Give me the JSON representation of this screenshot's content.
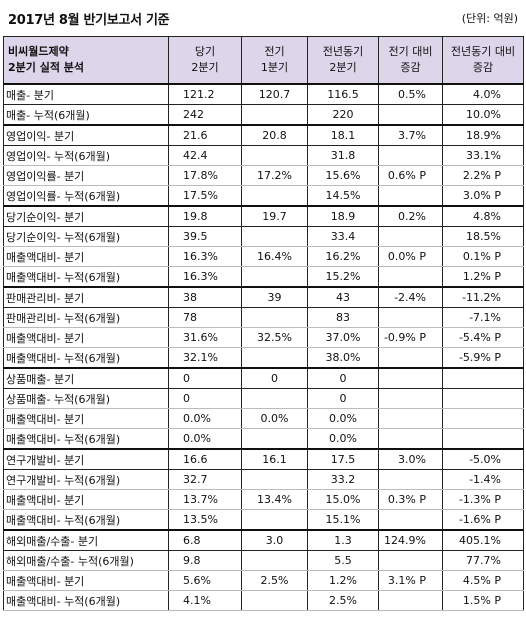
{
  "title": "2017년 8월 반기보고서 기준",
  "unit": "(단위: 억원)",
  "header": {
    "company": "비씨월드제약",
    "subtitle": "2분기 실적 분석",
    "col1": [
      "당기",
      "2분기"
    ],
    "col2": [
      "전기",
      "1분기"
    ],
    "col3": [
      "전년동기",
      "2분기"
    ],
    "col4": [
      "전기 대비",
      "증감"
    ],
    "col5": [
      "전년동기 대비",
      "증감"
    ]
  },
  "groups": [
    {
      "rows": [
        [
          "매출- 분기",
          "121.2",
          "120.7",
          "116.5",
          "0.5%",
          "4.0%"
        ],
        [
          "매출- 누적(6개월)",
          "242",
          "",
          "220",
          "",
          "10.0%"
        ]
      ]
    },
    {
      "rows": [
        [
          "영업이익- 분기",
          "21.6",
          "20.8",
          "18.1",
          "3.7%",
          "18.9%"
        ],
        [
          "영업이익- 누적(6개월)",
          "42.4",
          "",
          "31.8",
          "",
          "33.1%"
        ],
        [
          "영업이익률- 분기",
          "17.8%",
          "17.2%",
          "15.6%",
          "0.6% P",
          "2.2% P"
        ],
        [
          "영업이익률- 누적(6개월)",
          "17.5%",
          "",
          "14.5%",
          "",
          "3.0% P"
        ]
      ]
    },
    {
      "rows": [
        [
          "당기순이익- 분기",
          "19.8",
          "19.7",
          "18.9",
          "0.2%",
          "4.8%"
        ],
        [
          "당기순이익- 누적(6개월)",
          "39.5",
          "",
          "33.4",
          "",
          "18.5%"
        ],
        [
          "매출액대비- 분기",
          "16.3%",
          "16.4%",
          "16.2%",
          "0.0% P",
          "0.1% P"
        ],
        [
          "매출액대비- 누적(6개월)",
          "16.3%",
          "",
          "15.2%",
          "",
          "1.2% P"
        ]
      ]
    },
    {
      "rows": [
        [
          "판매관리비- 분기",
          "38",
          "39",
          "43",
          "-2.4%",
          "-11.2%"
        ],
        [
          "판매관리비- 누적(6개월)",
          "78",
          "",
          "83",
          "",
          "-7.1%"
        ],
        [
          "매출액대비- 분기",
          "31.6%",
          "32.5%",
          "37.0%",
          "-0.9% P",
          "-5.4% P"
        ],
        [
          "매출액대비- 누적(6개월)",
          "32.1%",
          "",
          "38.0%",
          "",
          "-5.9% P"
        ]
      ]
    },
    {
      "rows": [
        [
          "상품매출- 분기",
          "0",
          "0",
          "0",
          "",
          ""
        ],
        [
          "상품매출- 누적(6개월)",
          "0",
          "",
          "0",
          "",
          ""
        ],
        [
          "매출액대비- 분기",
          "0.0%",
          "0.0%",
          "0.0%",
          "",
          ""
        ],
        [
          "매출액대비- 누적(6개월)",
          "0.0%",
          "",
          "0.0%",
          "",
          ""
        ]
      ]
    },
    {
      "rows": [
        [
          "연구개발비- 분기",
          "16.6",
          "16.1",
          "17.5",
          "3.0%",
          "-5.0%"
        ],
        [
          "연구개발비- 누적(6개월)",
          "32.7",
          "",
          "33.2",
          "",
          "-1.4%"
        ],
        [
          "매출액대비- 분기",
          "13.7%",
          "13.4%",
          "15.0%",
          "0.3% P",
          "-1.3% P"
        ],
        [
          "매출액대비- 누적(6개월)",
          "13.5%",
          "",
          "15.1%",
          "",
          "-1.6% P"
        ]
      ]
    },
    {
      "rows": [
        [
          "해외매출/수출- 분기",
          "6.8",
          "3.0",
          "1.3",
          "124.9%",
          "405.1%"
        ],
        [
          "해외매출/수출- 누적(6개월)",
          "9.8",
          "",
          "5.5",
          "",
          "77.7%"
        ],
        [
          "매출액대비- 분기",
          "5.6%",
          "2.5%",
          "1.2%",
          "3.1% P",
          "4.5% P"
        ],
        [
          "매출액대비- 누적(6개월)",
          "4.1%",
          "",
          "2.5%",
          "",
          "1.5% P"
        ]
      ]
    }
  ]
}
